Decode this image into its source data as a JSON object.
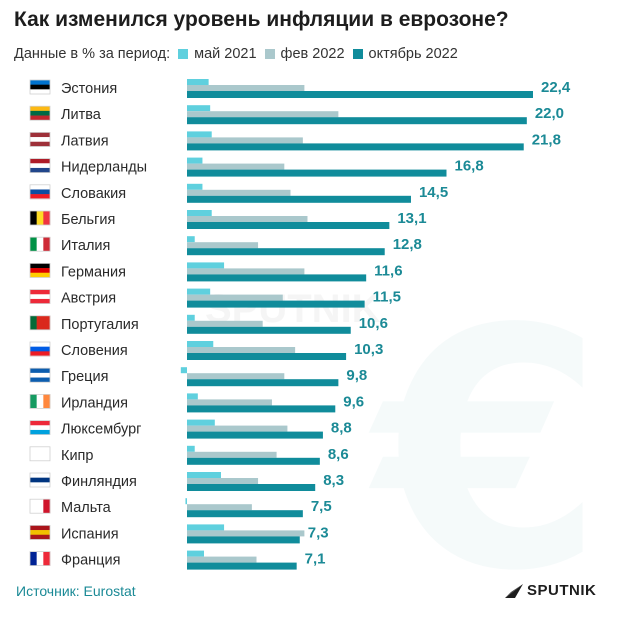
{
  "title": "Как изменился уровень инфляции в еврозоне?",
  "subtitle": "Данные в % за период:",
  "source": "Источник: Eurostat",
  "logo_text": "SPUTNIK",
  "watermark_text": "SPUTNIK",
  "colors": {
    "may2021": "#5fd0de",
    "feb2022": "#aac8cc",
    "oct2022": "#108c9b",
    "value_text": "#1b8a96"
  },
  "chart_data": {
    "type": "bar",
    "orientation": "horizontal",
    "title": "Как изменился уровень инфляции в еврозоне?",
    "subtitle": "Данные в % за период:",
    "categories": [
      "Эстония",
      "Литва",
      "Латвия",
      "Нидерланды",
      "Словакия",
      "Бельгия",
      "Италия",
      "Германия",
      "Австрия",
      "Португалия",
      "Словения",
      "Греция",
      "Ирландия",
      "Люксембург",
      "Кипр",
      "Финляндия",
      "Мальта",
      "Испания",
      "Франция"
    ],
    "series": [
      {
        "name": "май 2021",
        "values": [
          1.4,
          1.5,
          1.6,
          1.0,
          1.0,
          1.6,
          0.5,
          2.4,
          1.5,
          0.5,
          1.7,
          -0.4,
          0.7,
          1.8,
          0.5,
          2.2,
          -0.1,
          2.4,
          1.1
        ]
      },
      {
        "name": "фев 2022",
        "values": [
          7.6,
          9.8,
          7.5,
          6.3,
          6.7,
          7.8,
          4.6,
          7.6,
          6.2,
          4.9,
          7.0,
          6.3,
          5.5,
          6.5,
          5.8,
          4.6,
          4.2,
          7.6,
          4.5
        ]
      },
      {
        "name": "октябрь 2022",
        "values": [
          22.4,
          22.0,
          21.8,
          16.8,
          14.5,
          13.1,
          12.8,
          11.6,
          11.5,
          10.6,
          10.3,
          9.8,
          9.6,
          8.8,
          8.6,
          8.3,
          7.5,
          7.3,
          7.1
        ]
      }
    ],
    "value_labels": [
      "22,4",
      "22,0",
      "21,8",
      "16,8",
      "14,5",
      "13,1",
      "12,8",
      "11,6",
      "11,5",
      "10,6",
      "10,3",
      "9,8",
      "9,6",
      "8,8",
      "8,6",
      "8,3",
      "7,5",
      "7,3",
      "7,1"
    ],
    "flags": [
      [
        "#0072ce",
        "#000000",
        "#ffffff"
      ],
      [
        "#fdb913",
        "#006a44",
        "#c1272d"
      ],
      [
        "#9e3039",
        "#ffffff",
        "#9e3039"
      ],
      [
        "#ae1c28",
        "#ffffff",
        "#21468b"
      ],
      [
        "#ffffff",
        "#0b4ea2",
        "#ee1c25"
      ],
      [
        "v",
        "#000000",
        "#fdda24",
        "#ef3340"
      ],
      [
        "v",
        "#009246",
        "#ffffff",
        "#ce2b37"
      ],
      [
        "#000000",
        "#dd0000",
        "#ffce00"
      ],
      [
        "#ed2939",
        "#ffffff",
        "#ed2939"
      ],
      [
        "v",
        "#046a38",
        "#da291c",
        "#da291c"
      ],
      [
        "#ffffff",
        "#005ce5",
        "#ed1c24"
      ],
      [
        "#0d5eaf",
        "#ffffff",
        "#0d5eaf"
      ],
      [
        "v",
        "#169b62",
        "#ffffff",
        "#ff883e"
      ],
      [
        "#ed2939",
        "#ffffff",
        "#00a1de"
      ],
      [
        "#ffffff",
        "#ffffff",
        "#ffffff"
      ],
      [
        "#ffffff",
        "#003580",
        "#ffffff"
      ],
      [
        "v",
        "#ffffff",
        "#ffffff",
        "#cf142b"
      ],
      [
        "#aa151b",
        "#f1bf00",
        "#aa151b"
      ],
      [
        "v",
        "#002395",
        "#ffffff",
        "#ed2939"
      ]
    ],
    "xlim": [
      0,
      22.4
    ],
    "grid": false,
    "legend_position": "top"
  }
}
